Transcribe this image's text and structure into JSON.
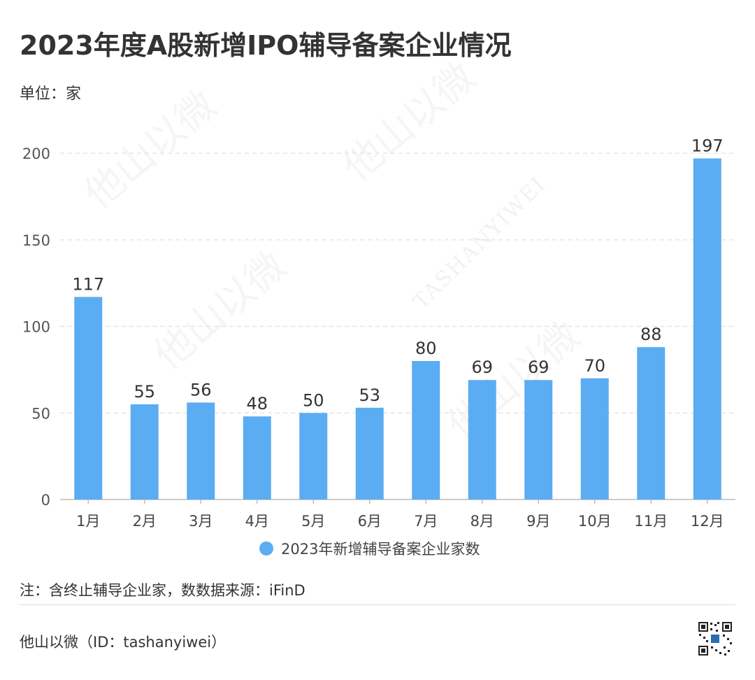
{
  "title": "2023年度A股新增IPO辅导备案企业情况",
  "unit": "单位：家",
  "note": "注：含终止辅导企业家，数数据来源：iFinD",
  "footer": "他山以微（ID：tashanyiwei）",
  "watermark": {
    "cn": "他山以微",
    "en": "TASHANYIWEI"
  },
  "colors": {
    "bar": "#5AADF2",
    "grid": "#e6e6e6",
    "axis": "#999999",
    "text": "#333333"
  },
  "chart_data": {
    "type": "bar",
    "categories": [
      "1月",
      "2月",
      "3月",
      "4月",
      "5月",
      "6月",
      "7月",
      "8月",
      "9月",
      "10月",
      "11月",
      "12月"
    ],
    "series": [
      {
        "name": "2023年新增辅导备案企业家数",
        "values": [
          117,
          55,
          56,
          48,
          50,
          53,
          80,
          69,
          69,
          70,
          88,
          197
        ]
      }
    ],
    "yticks": [
      0,
      50,
      100,
      150,
      200
    ],
    "ylim": [
      0,
      200
    ],
    "grid": true,
    "legend": "bottom",
    "data_labels": true
  }
}
